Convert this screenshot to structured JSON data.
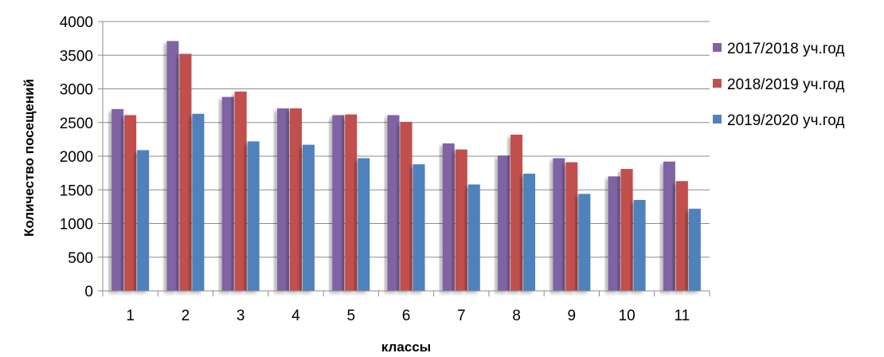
{
  "chart_data": {
    "type": "bar",
    "categories": [
      "1",
      "2",
      "3",
      "4",
      "5",
      "6",
      "7",
      "8",
      "9",
      "10",
      "11"
    ],
    "series": [
      {
        "name": "2017/2018 уч.год",
        "color": "#8064a2",
        "values": [
          2700,
          3710,
          2880,
          2710,
          2610,
          2610,
          2190,
          2010,
          1970,
          1700,
          1920
        ]
      },
      {
        "name": "2018/2019 уч.год",
        "color": "#c0504d",
        "values": [
          2610,
          3520,
          2960,
          2710,
          2620,
          2510,
          2100,
          2320,
          1910,
          1810,
          1630
        ]
      },
      {
        "name": "2019/2020 уч.год",
        "color": "#4f81bd",
        "values": [
          2090,
          2630,
          2220,
          2170,
          1970,
          1880,
          1580,
          1740,
          1440,
          1350,
          1220
        ]
      }
    ],
    "xlabel": "классы",
    "ylabel": "Количество посещений",
    "ylim": [
      0,
      4000
    ],
    "yticks": [
      0,
      500,
      1000,
      1500,
      2000,
      2500,
      3000,
      3500,
      4000
    ],
    "grid": true,
    "legend_position": "right"
  }
}
